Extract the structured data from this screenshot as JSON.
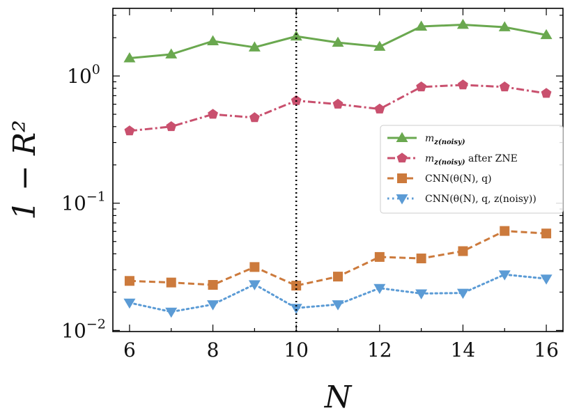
{
  "chart_data": {
    "type": "line",
    "xlabel": "N",
    "ylabel": "1 − R²",
    "xscale": "linear",
    "yscale": "log",
    "xlim": [
      5.6,
      16.4
    ],
    "ylim": [
      0.0098,
      3.4
    ],
    "x": [
      6,
      7,
      8,
      9,
      10,
      11,
      12,
      13,
      14,
      15,
      16
    ],
    "xticks": [
      {
        "value": 6,
        "label": "6"
      },
      {
        "value": 8,
        "label": "8"
      },
      {
        "value": 10,
        "label": "10"
      },
      {
        "value": 12,
        "label": "12"
      },
      {
        "value": 14,
        "label": "14"
      },
      {
        "value": 16,
        "label": "16"
      }
    ],
    "yticks": [
      {
        "value": 0.01,
        "base": "10",
        "exp": "−2"
      },
      {
        "value": 0.1,
        "base": "10",
        "exp": "−1"
      },
      {
        "value": 1,
        "base": "10",
        "exp": "0"
      }
    ],
    "vline": {
      "x": 10,
      "style": "dotted",
      "color": "#000000"
    },
    "legend_position": "center-right",
    "series": [
      {
        "name": "m_z(noisy)",
        "legend_label": "m",
        "legend_sub": "z(noisy)",
        "color": "#6aa84f",
        "marker": "triangle-up",
        "linestyle": "solid",
        "values": [
          1.38,
          1.48,
          1.88,
          1.68,
          2.05,
          1.83,
          1.7,
          2.45,
          2.53,
          2.42,
          2.1
        ]
      },
      {
        "name": "m_z(noisy) after ZNE",
        "legend_label": "m",
        "legend_sub": "z(noisy)",
        "legend_suffix": "after ZNE",
        "color": "#c9506e",
        "marker": "pentagon",
        "linestyle": "dashdot",
        "values": [
          0.37,
          0.4,
          0.5,
          0.47,
          0.64,
          0.6,
          0.55,
          0.82,
          0.85,
          0.82,
          0.73
        ]
      },
      {
        "name": "CNN(θ^(N), q)",
        "legend_label": "CNN(θ(N), q)",
        "color": "#cc7a3c",
        "marker": "square",
        "linestyle": "dashed",
        "values": [
          0.0245,
          0.0238,
          0.0228,
          0.0315,
          0.0225,
          0.0265,
          0.0378,
          0.0368,
          0.042,
          0.0605,
          0.0578
        ]
      },
      {
        "name": "CNN(θ^(N), q, z^(noisy))",
        "legend_label": "CNN(θ(N), q, z(noisy))",
        "color": "#5b9bd5",
        "marker": "triangle-down",
        "linestyle": "dotted",
        "values": [
          0.0165,
          0.014,
          0.016,
          0.023,
          0.015,
          0.016,
          0.0215,
          0.0195,
          0.0197,
          0.0275,
          0.0255
        ]
      }
    ]
  }
}
